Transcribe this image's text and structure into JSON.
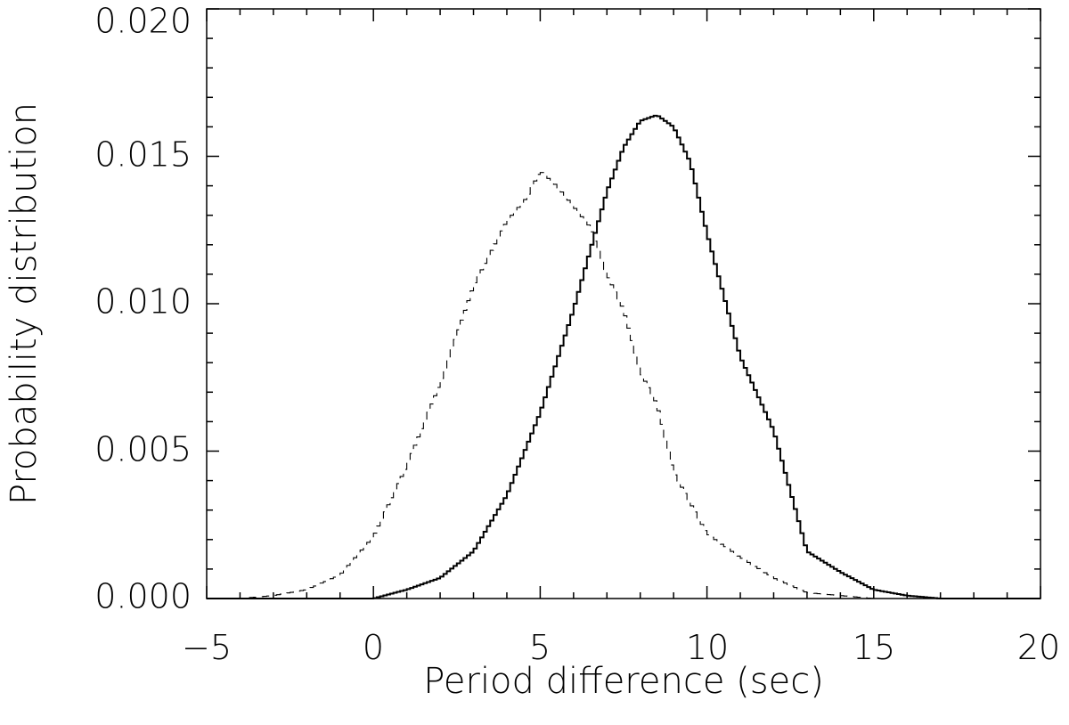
{
  "chart_data": {
    "type": "histogram",
    "xlabel": "Period difference (sec)",
    "ylabel": "Probability distribution",
    "xlim": [
      -5,
      20
    ],
    "ylim": [
      0,
      0.02
    ],
    "x_ticks": [
      "−5",
      "0",
      "5",
      "10",
      "15",
      "20"
    ],
    "x_tick_values": [
      -5,
      0,
      5,
      10,
      15,
      20
    ],
    "y_ticks": [
      "0.000",
      "0.005",
      "0.010",
      "0.015",
      "0.020"
    ],
    "y_tick_values": [
      0,
      0.005,
      0.01,
      0.015,
      0.02
    ],
    "bin_width": 0.1,
    "grid": false,
    "legend": "none",
    "series": [
      {
        "style": "dashed",
        "distribution_points": [
          [
            -4.0,
            0.0
          ],
          [
            -3.0,
            0.0001
          ],
          [
            -2.0,
            0.0003
          ],
          [
            -1.0,
            0.0008
          ],
          [
            0.0,
            0.0021
          ],
          [
            1.0,
            0.0045
          ],
          [
            2.0,
            0.0073
          ],
          [
            3.0,
            0.0106
          ],
          [
            4.0,
            0.0128
          ],
          [
            4.6,
            0.0136
          ],
          [
            5.0,
            0.0145
          ],
          [
            5.5,
            0.014
          ],
          [
            6.0,
            0.0133
          ],
          [
            6.5,
            0.0126
          ],
          [
            7.0,
            0.011
          ],
          [
            7.5,
            0.0098
          ],
          [
            8.0,
            0.0077
          ],
          [
            8.5,
            0.0066
          ],
          [
            9.0,
            0.0043
          ],
          [
            10.0,
            0.0022
          ],
          [
            11.0,
            0.0014
          ],
          [
            12.0,
            0.0007
          ],
          [
            13.0,
            0.0002
          ],
          [
            14.0,
            0.0001
          ],
          [
            15.0,
            0.0
          ]
        ]
      },
      {
        "style": "solid",
        "distribution_points": [
          [
            -1.0,
            0.0
          ],
          [
            0.0,
            0.0
          ],
          [
            1.0,
            0.0003
          ],
          [
            2.0,
            0.0007
          ],
          [
            3.0,
            0.0016
          ],
          [
            4.0,
            0.0035
          ],
          [
            5.0,
            0.0063
          ],
          [
            6.0,
            0.0098
          ],
          [
            6.5,
            0.0118
          ],
          [
            7.0,
            0.0138
          ],
          [
            7.5,
            0.0153
          ],
          [
            8.0,
            0.0162
          ],
          [
            8.5,
            0.0164
          ],
          [
            9.0,
            0.016
          ],
          [
            9.5,
            0.0148
          ],
          [
            10.0,
            0.0124
          ],
          [
            10.5,
            0.0103
          ],
          [
            11.0,
            0.0082
          ],
          [
            12.0,
            0.0057
          ],
          [
            13.0,
            0.0016
          ],
          [
            14.0,
            0.0009
          ],
          [
            15.0,
            0.0003
          ],
          [
            16.0,
            0.0001
          ],
          [
            17.0,
            0.0
          ],
          [
            18.0,
            0.0
          ]
        ]
      }
    ]
  }
}
